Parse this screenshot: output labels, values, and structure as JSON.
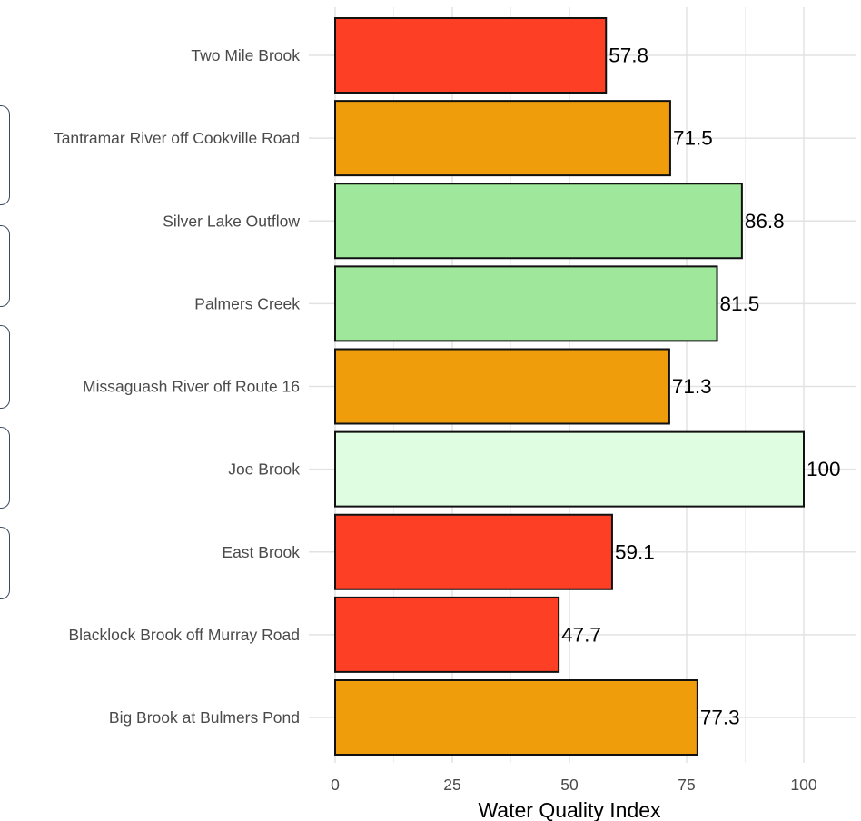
{
  "chart_data": {
    "type": "bar",
    "orientation": "horizontal",
    "title": "",
    "xlabel": "Water Quality Index",
    "ylabel": "",
    "xlim": [
      0,
      100
    ],
    "x_ticks": [
      "0",
      "25",
      "50",
      "75",
      "100"
    ],
    "grid": true,
    "categories": [
      "Two Mile Brook",
      "Tantramar River off Cookville Road",
      "Silver Lake Outflow",
      "Palmers Creek",
      "Missaguash River off Route 16",
      "Joe Brook",
      "East Brook",
      "Blacklock Brook off Murray Road",
      "Big Brook at Bulmers Pond"
    ],
    "values": [
      57.8,
      71.5,
      86.8,
      81.5,
      71.3,
      100,
      59.1,
      47.7,
      77.3
    ],
    "value_labels": [
      "57.8",
      "71.5",
      "86.8",
      "81.5",
      "71.3",
      "100",
      "59.1",
      "47.7",
      "77.3"
    ],
    "bar_colors": [
      "#fc3f25",
      "#ef9d0b",
      "#9fe89b",
      "#9fe89b",
      "#ef9d0b",
      "#dffde0",
      "#fc3f25",
      "#fc3f25",
      "#ef9d0b"
    ]
  }
}
